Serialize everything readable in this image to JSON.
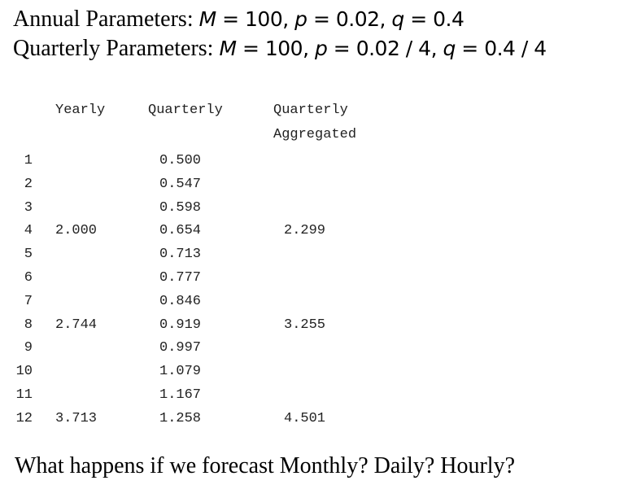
{
  "params": {
    "annual": {
      "label": "Annual Parameters: ",
      "m_sym": "M",
      "rest": " = 100, ",
      "p_sym": "p",
      "p_val": " = 0.02, ",
      "q_sym": "q",
      "q_val": " = 0.4"
    },
    "quarterly": {
      "label": "Quarterly Parameters: ",
      "m_sym": "M",
      "rest": " = 100, ",
      "p_sym": "p",
      "p_val": " = 0.02 / 4, ",
      "q_sym": "q",
      "q_val": " = 0.4 / 4"
    }
  },
  "table": {
    "headers": {
      "yearly": "Yearly",
      "quarterly": "Quarterly",
      "agg_line1": "Quarterly",
      "agg_line2": "Aggregated"
    },
    "rows": [
      {
        "period": "1",
        "yearly": "",
        "quarterly": "0.500",
        "agg": ""
      },
      {
        "period": "2",
        "yearly": "",
        "quarterly": "0.547",
        "agg": ""
      },
      {
        "period": "3",
        "yearly": "",
        "quarterly": "0.598",
        "agg": ""
      },
      {
        "period": "4",
        "yearly": "2.000",
        "quarterly": "0.654",
        "agg": "2.299"
      },
      {
        "period": "5",
        "yearly": "",
        "quarterly": "0.713",
        "agg": ""
      },
      {
        "period": "6",
        "yearly": "",
        "quarterly": "0.777",
        "agg": ""
      },
      {
        "period": "7",
        "yearly": "",
        "quarterly": "0.846",
        "agg": ""
      },
      {
        "period": "8",
        "yearly": "2.744",
        "quarterly": "0.919",
        "agg": "3.255"
      },
      {
        "period": "9",
        "yearly": "",
        "quarterly": "0.997",
        "agg": ""
      },
      {
        "period": "10",
        "yearly": "",
        "quarterly": "1.079",
        "agg": ""
      },
      {
        "period": "11",
        "yearly": "",
        "quarterly": "1.167",
        "agg": ""
      },
      {
        "period": "12",
        "yearly": "3.713",
        "quarterly": "1.258",
        "agg": "4.501"
      }
    ]
  },
  "footer": "What happens if we forecast Monthly? Daily? Hourly?"
}
